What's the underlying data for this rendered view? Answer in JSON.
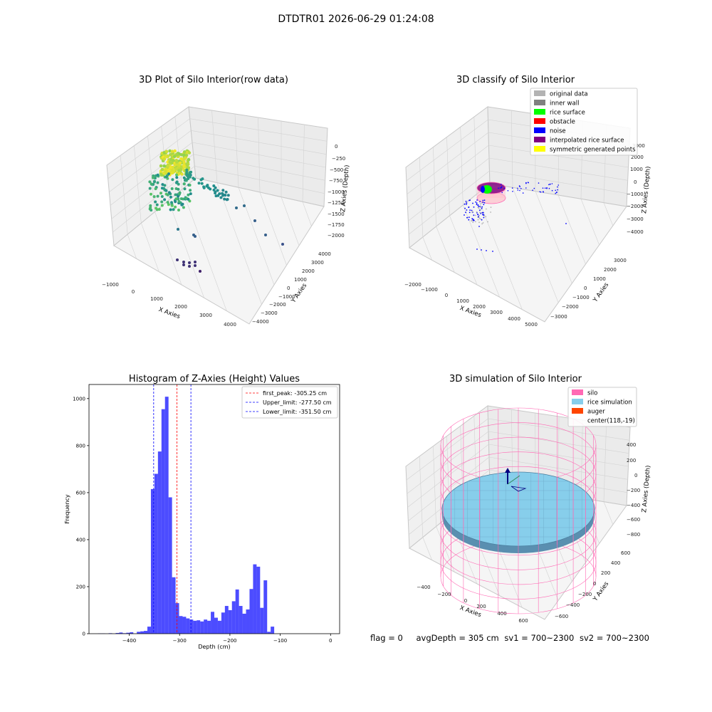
{
  "figure": {
    "suptitle": "DTDTR01 2026-06-29 01:24:08",
    "footer": {
      "flag": "flag = 0",
      "avg_depth": "avgDepth = 305 cm",
      "sv1": "sv1 = 700~2300",
      "sv2": "sv2 = 700~2300"
    }
  },
  "panels": {
    "raw": {
      "title": "3D Plot of Silo Interior(row data)",
      "xlabel": "X Axies",
      "ylabel": "Y Axies",
      "zlabel": "Z Axies (Depth)",
      "xticks": [
        "−1000",
        "0",
        "1000",
        "2000",
        "3000",
        "4000"
      ],
      "yticks": [
        "4000",
        "3000",
        "2000",
        "1000",
        "0",
        "−1000",
        "−2000",
        "−3000",
        "−4000"
      ],
      "zticks": [
        "0",
        "−250",
        "−500",
        "−750",
        "−1000",
        "−1250",
        "−1500",
        "−1750",
        "−2000"
      ]
    },
    "classify": {
      "title": "3D classify of Silo Interior",
      "xlabel": "X Axies",
      "ylabel": "Y Axies",
      "zlabel": "Z Axies (Depth)",
      "xticks": [
        "−2000",
        "−1000",
        "0",
        "1000",
        "2000",
        "3000",
        "4000",
        "5000"
      ],
      "yticks": [
        "3000",
        "2000",
        "1000",
        "0",
        "−1000",
        "−2000",
        "−3000"
      ],
      "zticks": [
        "3000",
        "2000",
        "1000",
        "0",
        "−1000",
        "−2000",
        "−3000",
        "−4000"
      ],
      "legend": [
        {
          "label": "original data",
          "color": "#b3b3b3"
        },
        {
          "label": "inner wall",
          "color": "#808080"
        },
        {
          "label": "rice surface",
          "color": "#00ff00"
        },
        {
          "label": "obstacle",
          "color": "#ff0000"
        },
        {
          "label": "noise",
          "color": "#0000ff"
        },
        {
          "label": "interpolated rice surface",
          "color": "#800080"
        },
        {
          "label": "symmetric generated points",
          "color": "#ffff00"
        }
      ]
    },
    "simulation": {
      "title": "3D simulation of Silo Interior",
      "xlabel": "X Axies",
      "ylabel": "Y Axies",
      "zlabel": "Z Axies (Depth)",
      "xticks": [
        "−400",
        "−200",
        "0",
        "200",
        "400",
        "600"
      ],
      "yticks": [
        "600",
        "400",
        "200",
        "0",
        "−200",
        "−400",
        "−600"
      ],
      "zticks": [
        "400",
        "200",
        "0",
        "−200",
        "−400",
        "−600",
        "−800"
      ],
      "legend": [
        {
          "label": "silo",
          "color": "#ff69b4"
        },
        {
          "label": "rice simulation",
          "color": "#87ceeb"
        },
        {
          "label": "auger",
          "color": "#ff4500"
        },
        {
          "label": "center(118,-19)",
          "color": ""
        }
      ]
    }
  },
  "chart_data": [
    {
      "type": "scatter",
      "title": "3D Plot of Silo Interior(row data)",
      "xlabel": "X Axies",
      "ylabel": "Y Axies",
      "zlabel": "Z Axies (Depth)",
      "xlim": [
        -1000,
        4000
      ],
      "ylim": [
        -4000,
        4000
      ],
      "zlim": [
        -2000,
        0
      ]
    },
    {
      "type": "scatter",
      "title": "3D classify of Silo Interior",
      "xlabel": "X Axies",
      "ylabel": "Y Axies",
      "zlabel": "Z Axies (Depth)",
      "xlim": [
        -2000,
        5000
      ],
      "ylim": [
        -3000,
        3000
      ],
      "zlim": [
        -4000,
        3000
      ],
      "series": [
        {
          "name": "original data"
        },
        {
          "name": "inner wall"
        },
        {
          "name": "rice surface"
        },
        {
          "name": "obstacle"
        },
        {
          "name": "noise"
        },
        {
          "name": "interpolated rice surface"
        },
        {
          "name": "symmetric generated points"
        }
      ],
      "legend": "top-right"
    },
    {
      "type": "bar",
      "title": "Histogram of Z-Axies (Height) Values",
      "xlabel": "Depth (cm)",
      "ylabel": "Frequency",
      "xlim": [
        -480,
        18
      ],
      "ylim": [
        0,
        1060
      ],
      "xticks": [
        -400,
        -300,
        -200,
        -100,
        0
      ],
      "yticks": [
        0,
        200,
        400,
        600,
        800,
        1000
      ],
      "bin_width": 7,
      "bins": [
        [
          -462,
          1
        ],
        [
          -455,
          1
        ],
        [
          -441,
          2
        ],
        [
          -427,
          3
        ],
        [
          -420,
          5
        ],
        [
          -413,
          2
        ],
        [
          -406,
          4
        ],
        [
          -399,
          6
        ],
        [
          -385,
          8
        ],
        [
          -378,
          10
        ],
        [
          -371,
          12
        ],
        [
          -364,
          30
        ],
        [
          -357,
          615
        ],
        [
          -350,
          680
        ],
        [
          -343,
          775
        ],
        [
          -336,
          955
        ],
        [
          -329,
          1008
        ],
        [
          -322,
          580
        ],
        [
          -315,
          240
        ],
        [
          -308,
          130
        ],
        [
          -301,
          75
        ],
        [
          -294,
          72
        ],
        [
          -287,
          65
        ],
        [
          -280,
          60
        ],
        [
          -273,
          55
        ],
        [
          -266,
          57
        ],
        [
          -259,
          52
        ],
        [
          -252,
          60
        ],
        [
          -245,
          55
        ],
        [
          -238,
          93
        ],
        [
          -231,
          68
        ],
        [
          -224,
          55
        ],
        [
          -217,
          90
        ],
        [
          -210,
          118
        ],
        [
          -203,
          100
        ],
        [
          -196,
          138
        ],
        [
          -189,
          188
        ],
        [
          -182,
          118
        ],
        [
          -175,
          85
        ],
        [
          -168,
          103
        ],
        [
          -161,
          190
        ],
        [
          -154,
          295
        ],
        [
          -147,
          285
        ],
        [
          -140,
          110
        ],
        [
          -133,
          227
        ],
        [
          -126,
          8
        ],
        [
          -119,
          30
        ]
      ],
      "vlines": [
        {
          "name": "first_peak: -305.25 cm",
          "x": -305.25,
          "color": "#ff0000"
        },
        {
          "name": "Upper_limit: -277.50 cm",
          "x": -277.5,
          "color": "#0000ff"
        },
        {
          "name": "Lower_limit: -351.50 cm",
          "x": -351.5,
          "color": "#0000ff"
        }
      ],
      "bar_color": "#0000ff",
      "legend": "top-right"
    },
    {
      "type": "surface",
      "title": "3D simulation of Silo Interior",
      "xlabel": "X Axies",
      "ylabel": "Y Axies",
      "zlabel": "Z Axies (Depth)",
      "xlim": [
        -500,
        700
      ],
      "ylim": [
        -700,
        700
      ],
      "zlim": [
        -900,
        500
      ],
      "series": [
        {
          "name": "silo",
          "color": "#ff69b4"
        },
        {
          "name": "rice simulation",
          "color": "#87ceeb"
        },
        {
          "name": "auger",
          "color": "#ff4500"
        },
        {
          "name": "center(118,-19)"
        }
      ],
      "legend": "top-right"
    }
  ]
}
